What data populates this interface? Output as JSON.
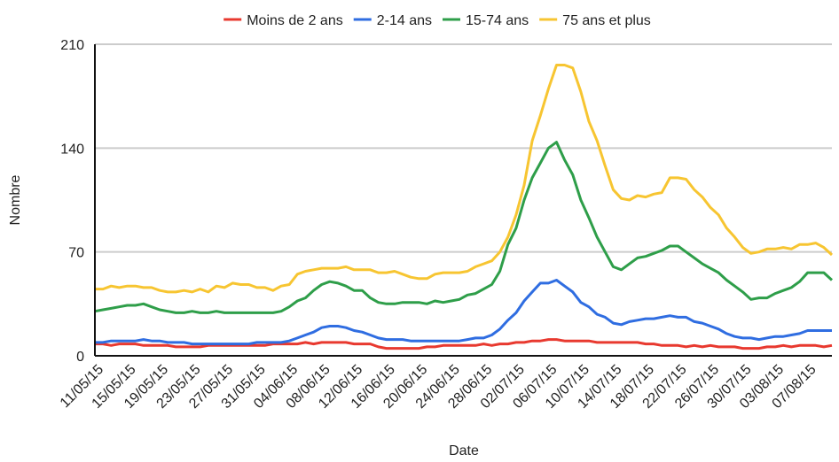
{
  "chart_data": {
    "type": "line",
    "x_label": "Date",
    "y_label": "Nombre",
    "categories": [
      "11/05/15",
      null,
      null,
      null,
      "15/05/15",
      null,
      null,
      null,
      "19/05/15",
      null,
      null,
      null,
      "23/05/15",
      null,
      null,
      null,
      "27/05/15",
      null,
      null,
      null,
      "31/05/15",
      null,
      null,
      null,
      "04/06/15",
      null,
      null,
      null,
      "08/06/15",
      null,
      null,
      null,
      "12/06/15",
      null,
      null,
      null,
      "16/06/15",
      null,
      null,
      null,
      "20/06/15",
      null,
      null,
      null,
      "24/06/15",
      null,
      null,
      null,
      "28/06/15",
      null,
      null,
      null,
      "02/07/15",
      null,
      null,
      null,
      "06/07/15",
      null,
      null,
      null,
      "10/07/15",
      null,
      null,
      null,
      "14/07/15",
      null,
      null,
      null,
      "18/07/15",
      null,
      null,
      null,
      "22/07/15",
      null,
      null,
      null,
      "26/07/15",
      null,
      null,
      null,
      "30/07/15",
      null,
      null,
      null,
      "03/08/15",
      null,
      null,
      null,
      "07/08/15",
      null,
      null,
      null
    ],
    "series": [
      {
        "name": "Moins de 2 ans",
        "color": "#e8392f",
        "values": [
          8,
          8,
          7,
          8,
          8,
          8,
          7,
          7,
          7,
          7,
          6,
          6,
          6,
          6,
          7,
          7,
          7,
          7,
          7,
          7,
          7,
          7,
          8,
          8,
          8,
          8,
          9,
          8,
          9,
          9,
          9,
          9,
          8,
          8,
          8,
          6,
          5,
          5,
          5,
          5,
          5,
          6,
          6,
          7,
          7,
          7,
          7,
          7,
          8,
          7,
          8,
          8,
          9,
          9,
          10,
          10,
          11,
          11,
          10,
          10,
          10,
          10,
          9,
          9,
          9,
          9,
          9,
          9,
          8,
          8,
          7,
          7,
          7,
          6,
          7,
          6,
          7,
          6,
          6,
          6,
          5,
          5,
          5,
          6,
          6,
          7,
          6,
          7,
          7,
          7,
          6,
          7
        ]
      },
      {
        "name": "2-14 ans",
        "color": "#2f6de1",
        "values": [
          9,
          9,
          10,
          10,
          10,
          10,
          11,
          10,
          10,
          9,
          9,
          9,
          8,
          8,
          8,
          8,
          8,
          8,
          8,
          8,
          9,
          9,
          9,
          9,
          10,
          12,
          14,
          16,
          19,
          20,
          20,
          19,
          17,
          16,
          14,
          12,
          11,
          11,
          11,
          10,
          10,
          10,
          10,
          10,
          10,
          10,
          11,
          12,
          12,
          14,
          18,
          24,
          29,
          37,
          43,
          49,
          49,
          51,
          47,
          43,
          36,
          33,
          28,
          26,
          22,
          21,
          23,
          24,
          25,
          25,
          26,
          27,
          26,
          26,
          23,
          22,
          20,
          18,
          15,
          13,
          12,
          12,
          11,
          12,
          13,
          13,
          14,
          15,
          17,
          17,
          17,
          17
        ]
      },
      {
        "name": "15-74 ans",
        "color": "#2e9e49",
        "values": [
          30,
          31,
          32,
          33,
          34,
          34,
          35,
          33,
          31,
          30,
          29,
          29,
          30,
          29,
          29,
          30,
          29,
          29,
          29,
          29,
          29,
          29,
          29,
          30,
          33,
          37,
          39,
          44,
          48,
          50,
          49,
          47,
          44,
          44,
          39,
          36,
          35,
          35,
          36,
          36,
          36,
          35,
          37,
          36,
          37,
          38,
          41,
          42,
          45,
          48,
          57,
          75,
          86,
          105,
          120,
          130,
          140,
          144,
          132,
          122,
          105,
          93,
          80,
          70,
          60,
          58,
          62,
          66,
          67,
          69,
          71,
          74,
          74,
          70,
          66,
          62,
          59,
          56,
          51,
          47,
          43,
          38,
          39,
          39,
          42,
          44,
          46,
          50,
          56,
          56,
          56,
          51
        ]
      },
      {
        "name": "75 ans et plus",
        "color": "#f7c531",
        "values": [
          45,
          45,
          47,
          46,
          47,
          47,
          46,
          46,
          44,
          43,
          43,
          44,
          43,
          45,
          43,
          47,
          46,
          49,
          48,
          48,
          46,
          46,
          44,
          47,
          48,
          55,
          57,
          58,
          59,
          59,
          59,
          60,
          58,
          58,
          58,
          56,
          56,
          57,
          55,
          53,
          52,
          52,
          55,
          56,
          56,
          56,
          57,
          60,
          62,
          64,
          70,
          80,
          95,
          115,
          145,
          162,
          180,
          196,
          196,
          194,
          178,
          158,
          145,
          128,
          112,
          106,
          105,
          108,
          107,
          109,
          110,
          120,
          120,
          119,
          112,
          107,
          100,
          95,
          86,
          80,
          73,
          69,
          70,
          72,
          72,
          73,
          72,
          75,
          75,
          76,
          73,
          68
        ]
      }
    ],
    "ylim": [
      0,
      210
    ],
    "yticks": [
      0,
      70,
      140,
      210
    ],
    "grid": true,
    "legend": "top"
  }
}
